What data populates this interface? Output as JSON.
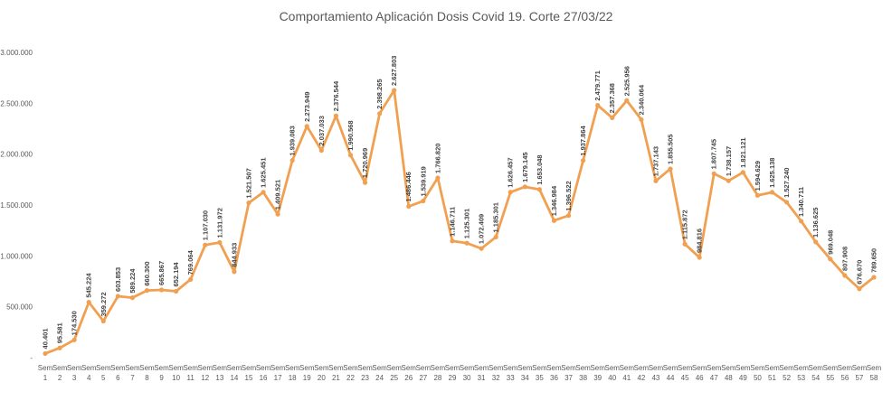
{
  "chart_data": {
    "type": "line",
    "title": "Comportamiento Aplicación Dosis Covid 19. Corte 27/03/22",
    "xlabel": "",
    "ylabel": "",
    "ylim": [
      0,
      3000000
    ],
    "ytick_labels": [
      "-",
      "500.000",
      "1.000.000",
      "1.500.000",
      "2.000.000",
      "2.500.000",
      "3.000.000"
    ],
    "grid": false,
    "legend": "none",
    "line_color": "#F0A050",
    "categories": [
      "Sem 1",
      "Sem 2",
      "Sem 3",
      "Sem 4",
      "Sem 5",
      "Sem 6",
      "Sem 7",
      "Sem 8",
      "Sem 9",
      "Sem 10",
      "Sem 11",
      "Sem 12",
      "Sem 13",
      "Sem 14",
      "Sem 15",
      "Sem 16",
      "Sem 17",
      "Sem 18",
      "Sem 19",
      "Sem 20",
      "Sem 21",
      "Sem 22",
      "Sem 23",
      "Sem 24",
      "Sem 25",
      "Sem 26",
      "Sem 27",
      "Sem 28",
      "Sem 29",
      "Sem 30",
      "Sem 31",
      "Sem 32",
      "Sem 33",
      "Sem 34",
      "Sem 35",
      "Sem 36",
      "Sem 37",
      "Sem 38",
      "Sem 39",
      "Sem 40",
      "Sem 41",
      "Sem 42",
      "Sem 43",
      "Sem 44",
      "Sem 45",
      "Sem 46",
      "Sem 47",
      "Sem 48",
      "Sem 49",
      "Sem 50",
      "Sem 51",
      "Sem 52",
      "Sem 53",
      "Sem 54",
      "Sem 55",
      "Sem 56",
      "Sem 57",
      "Sem 58"
    ],
    "values": [
      40401,
      95581,
      174530,
      545224,
      359272,
      603853,
      589224,
      660300,
      665867,
      652194,
      769064,
      1107030,
      1131972,
      844933,
      1521507,
      1625451,
      1409521,
      1939083,
      2273949,
      2037033,
      2376544,
      1990568,
      1720969,
      2398265,
      2627803,
      1486446,
      1539919,
      1766820,
      1146711,
      1125301,
      1072409,
      1185301,
      1626457,
      1679145,
      1653048,
      1346984,
      1396522,
      1937864,
      2479771,
      2357368,
      2525956,
      2340064,
      1737143,
      1855505,
      1115872,
      984816,
      1807745,
      1738157,
      1821121,
      1594629,
      1625138,
      1527240,
      1340711,
      1136625,
      969048,
      807908,
      676670,
      789650
    ],
    "data_labels": [
      "40.401",
      "95.581",
      "174.530",
      "545.224",
      "359.272",
      "603.853",
      "589.224",
      "660.300",
      "665.867",
      "652.194",
      "769.064",
      "1.107.030",
      "1.131.972",
      "844.933",
      "1.521.507",
      "1.625.451",
      "1.409.521",
      "1.939.083",
      "2.273.949",
      "2.037.033",
      "2.376.544",
      "1.990.568",
      "1.720.969",
      "2.398.265",
      "2.627.803",
      "1.486.446",
      "1.539.919",
      "1.766.820",
      "1.146.711",
      "1.125.301",
      "1.072.409",
      "1.185.301",
      "1.626.457",
      "1.679.145",
      "1.653.048",
      "1.346.984",
      "1.396.522",
      "1.937.864",
      "2.479.771",
      "2.357.368",
      "2.525.956",
      "2.340.064",
      "1.737.143",
      "1.855.505",
      "1.115.872",
      "984.816",
      "1.807.745",
      "1.738.157",
      "1.821.121",
      "1.594.629",
      "1.625.138",
      "1.527.240",
      "1.340.711",
      "1.136.625",
      "969.048",
      "807.908",
      "676.670",
      "789.650"
    ]
  }
}
